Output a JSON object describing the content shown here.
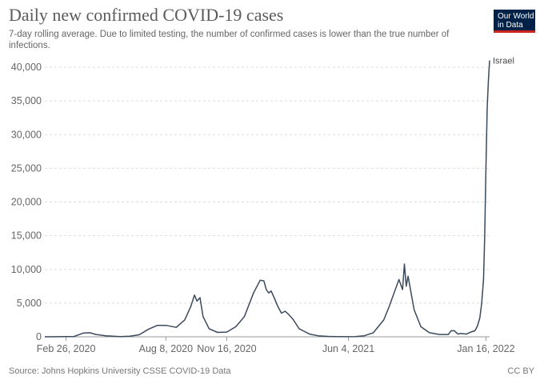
{
  "header": {
    "title": "Daily new confirmed COVID-19 cases",
    "subtitle": "7-day rolling average. Due to limited testing, the number of confirmed cases is lower than the true number of infections.",
    "logo_line1": "Our World",
    "logo_line2": "in Data"
  },
  "footer": {
    "source": "Source: Johns Hopkins University CSSE COVID-19 Data",
    "license": "CC BY"
  },
  "colors": {
    "line": "#3a4a5c",
    "grid": "#dddddd",
    "logo_bg": "#002147",
    "logo_accent": "#ce261e"
  },
  "chart_data": {
    "type": "line",
    "title": "Daily new confirmed COVID-19 cases",
    "subtitle": "7-day rolling average. Due to limited testing, the number of confirmed cases is lower than the true number of infections.",
    "ylim": [
      0,
      40000
    ],
    "y_ticks": [
      0,
      5000,
      10000,
      15000,
      20000,
      25000,
      30000,
      35000,
      40000
    ],
    "y_tick_labels": [
      "0",
      "5,000",
      "10,000",
      "15,000",
      "20,000",
      "25,000",
      "30,000",
      "35,000",
      "40,000"
    ],
    "x_range": [
      "2020-01-22",
      "2022-01-22"
    ],
    "x_ticks": [
      "2020-02-26",
      "2020-08-08",
      "2020-11-16",
      "2021-06-04",
      "2022-01-16"
    ],
    "x_tick_labels": [
      "Feb 26, 2020",
      "Aug 8, 2020",
      "Nov 16, 2020",
      "Jun 4, 2021",
      "Jan 16, 2022"
    ],
    "grid": "horizontal dashed",
    "legend": "end-of-line label",
    "series": [
      {
        "name": "Israel",
        "color": "#3a4a5c",
        "x": [
          "2020-01-22",
          "2020-03-10",
          "2020-03-25",
          "2020-04-05",
          "2020-04-15",
          "2020-05-01",
          "2020-05-25",
          "2020-06-10",
          "2020-06-25",
          "2020-07-10",
          "2020-07-25",
          "2020-08-08",
          "2020-08-25",
          "2020-09-08",
          "2020-09-18",
          "2020-09-24",
          "2020-09-28",
          "2020-10-03",
          "2020-10-08",
          "2020-10-18",
          "2020-11-01",
          "2020-11-16",
          "2020-12-01",
          "2020-12-15",
          "2020-12-30",
          "2021-01-10",
          "2021-01-16",
          "2021-01-20",
          "2021-01-24",
          "2021-01-28",
          "2021-02-02",
          "2021-02-08",
          "2021-02-14",
          "2021-02-20",
          "2021-02-26",
          "2021-03-05",
          "2021-03-15",
          "2021-04-01",
          "2021-04-15",
          "2021-05-01",
          "2021-05-15",
          "2021-06-04",
          "2021-06-15",
          "2021-06-30",
          "2021-07-15",
          "2021-08-01",
          "2021-08-10",
          "2021-08-20",
          "2021-08-26",
          "2021-09-01",
          "2021-09-04",
          "2021-09-07",
          "2021-09-10",
          "2021-09-14",
          "2021-09-20",
          "2021-10-01",
          "2021-10-15",
          "2021-11-01",
          "2021-11-15",
          "2021-11-20",
          "2021-11-25",
          "2021-12-01",
          "2021-12-05",
          "2021-12-15",
          "2021-12-22",
          "2021-12-29",
          "2022-01-02",
          "2022-01-06",
          "2022-01-09",
          "2022-01-12",
          "2022-01-14",
          "2022-01-16",
          "2022-01-18",
          "2022-01-20",
          "2022-01-22"
        ],
        "y": [
          0,
          50,
          550,
          600,
          350,
          150,
          30,
          80,
          300,
          1100,
          1700,
          1700,
          1400,
          2500,
          4500,
          6200,
          5300,
          5800,
          3000,
          1200,
          650,
          700,
          1500,
          3000,
          6500,
          8400,
          8300,
          7000,
          6500,
          6800,
          5800,
          4500,
          3500,
          3800,
          3300,
          2600,
          1200,
          400,
          150,
          60,
          25,
          15,
          20,
          150,
          600,
          2500,
          4500,
          7000,
          8500,
          7000,
          10800,
          7500,
          9000,
          7000,
          4000,
          1500,
          600,
          350,
          350,
          900,
          900,
          400,
          500,
          400,
          700,
          900,
          1600,
          2800,
          5000,
          8500,
          15000,
          25000,
          34000,
          38000,
          41000
        ]
      }
    ]
  }
}
